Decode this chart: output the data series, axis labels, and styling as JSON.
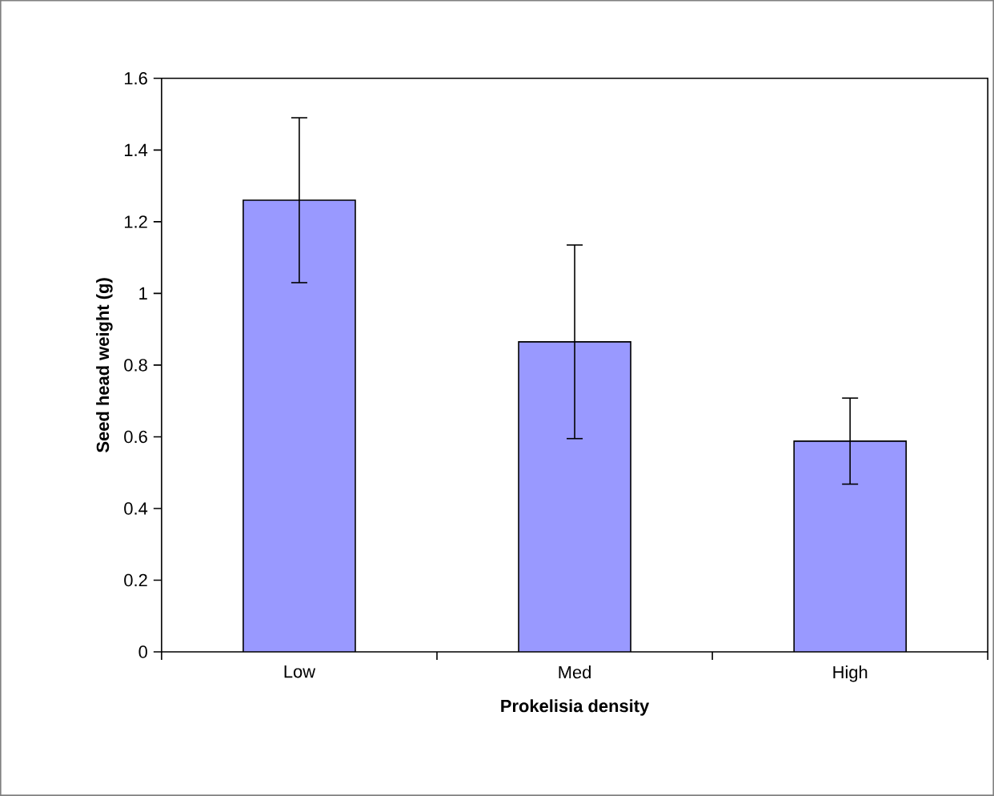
{
  "chart_data": {
    "type": "bar",
    "xlabel": "Prokelisia density",
    "ylabel": "Seed head weight (g)",
    "categories": [
      "Low",
      "Med",
      "High"
    ],
    "values": [
      1.26,
      0.865,
      0.588
    ],
    "errors": [
      0.23,
      0.27,
      0.12
    ],
    "color": "#9999ff",
    "ylim": [
      0,
      1.6
    ],
    "yticks": [
      0,
      0.2,
      0.4,
      0.6,
      0.8,
      1,
      1.2,
      1.4,
      1.6
    ],
    "grid": false
  }
}
